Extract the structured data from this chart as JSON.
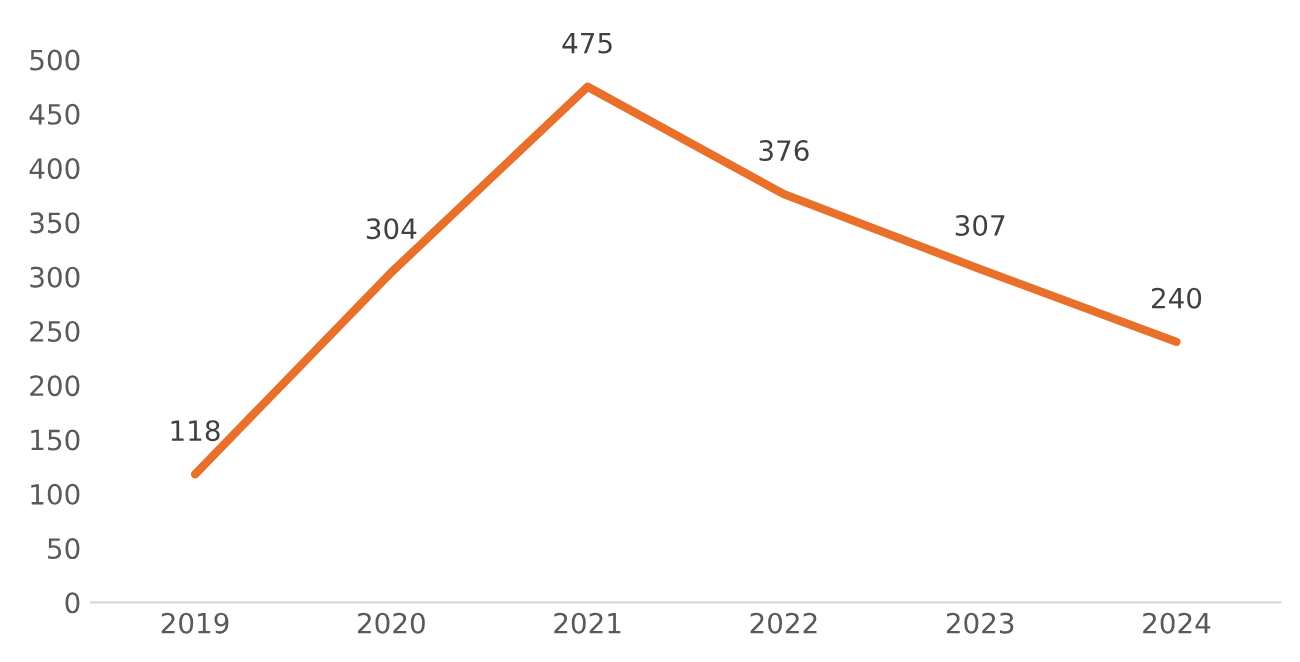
{
  "chart_data": {
    "type": "line",
    "categories": [
      "2019",
      "2020",
      "2021",
      "2022",
      "2023",
      "2024"
    ],
    "series": [
      {
        "color": "#e8702a",
        "values": [
          118,
          304,
          475,
          376,
          307,
          240
        ]
      }
    ],
    "ylim": [
      0,
      500
    ],
    "yticks": [
      0,
      50,
      100,
      150,
      200,
      250,
      300,
      350,
      400,
      450,
      500
    ],
    "data_labels": true
  }
}
